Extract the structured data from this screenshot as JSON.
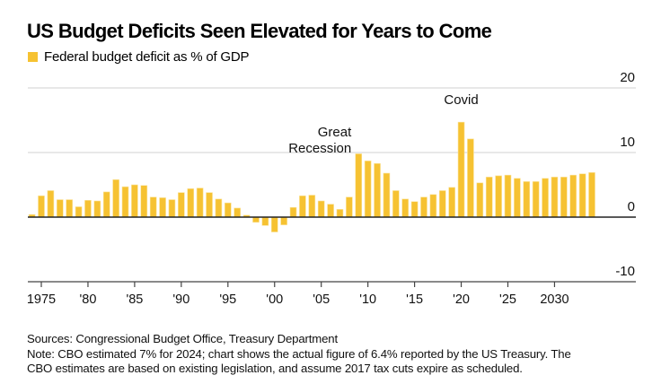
{
  "title": "US Budget Deficits Seen Elevated for Years to Come",
  "legend": {
    "label": "Federal budget deficit as % of GDP",
    "color": "#F6C232"
  },
  "footer": {
    "sources": "Sources: Congressional Budget Office, Treasury Department",
    "note_line1": "Note: CBO estimated 7% for 2024; chart shows the actual figure of 6.4% reported by the US Treasury. The",
    "note_line2": "CBO estimates are based on existing legislation, and assume 2017 tax cuts expire as scheduled."
  },
  "chart_data": {
    "type": "bar",
    "title": "US Budget Deficits Seen Elevated for Years to Come",
    "xlabel": "",
    "ylabel": "Federal budget deficit as % of GDP",
    "ylim": [
      -10,
      20
    ],
    "yticks": [
      20,
      10,
      0,
      -10
    ],
    "ytick_labels": [
      "20",
      "10",
      "0",
      "-10"
    ],
    "grid": true,
    "legend_position": "top-left",
    "xticks": [
      1975,
      1980,
      1985,
      1990,
      1995,
      2000,
      2005,
      2010,
      2015,
      2020,
      2025,
      2030
    ],
    "xtick_labels": [
      "1975",
      "'80",
      "'85",
      "'90",
      "'95",
      "'00",
      "'05",
      "'10",
      "'15",
      "'20",
      "'25",
      "2030"
    ],
    "xlim": [
      1974,
      2038
    ],
    "bar_color": "#F6C232",
    "series": [
      {
        "name": "Federal budget deficit as % of GDP",
        "x": [
          1974,
          1975,
          1976,
          1977,
          1978,
          1979,
          1980,
          1981,
          1982,
          1983,
          1984,
          1985,
          1986,
          1987,
          1988,
          1989,
          1990,
          1991,
          1992,
          1993,
          1994,
          1995,
          1996,
          1997,
          1998,
          1999,
          2000,
          2001,
          2002,
          2003,
          2004,
          2005,
          2006,
          2007,
          2008,
          2009,
          2010,
          2011,
          2012,
          2013,
          2014,
          2015,
          2016,
          2017,
          2018,
          2019,
          2020,
          2021,
          2022,
          2023,
          2024,
          2025,
          2026,
          2027,
          2028,
          2029,
          2030,
          2031,
          2032,
          2033,
          2034
        ],
        "values": [
          0.4,
          3.3,
          4.1,
          2.7,
          2.7,
          1.6,
          2.6,
          2.5,
          3.9,
          5.8,
          4.7,
          5.0,
          4.9,
          3.1,
          3.0,
          2.7,
          3.8,
          4.4,
          4.5,
          3.8,
          2.8,
          2.2,
          1.4,
          0.3,
          -0.8,
          -1.3,
          -2.3,
          -1.2,
          1.5,
          3.3,
          3.4,
          2.5,
          2.0,
          1.2,
          3.1,
          9.8,
          8.7,
          8.3,
          6.8,
          4.1,
          2.8,
          2.4,
          3.1,
          3.5,
          4.1,
          4.6,
          14.7,
          12.1,
          5.3,
          6.2,
          6.4,
          6.5,
          6.0,
          5.5,
          5.5,
          6.0,
          6.2,
          6.2,
          6.5,
          6.7,
          6.9
        ]
      }
    ],
    "annotations": [
      {
        "text_lines": [
          "Great",
          "Recession"
        ],
        "x": 2009,
        "y": 12.5,
        "anchor": "end"
      },
      {
        "text_lines": [
          "Covid"
        ],
        "x": 2020,
        "y": 17.5,
        "anchor": "middle"
      }
    ]
  }
}
